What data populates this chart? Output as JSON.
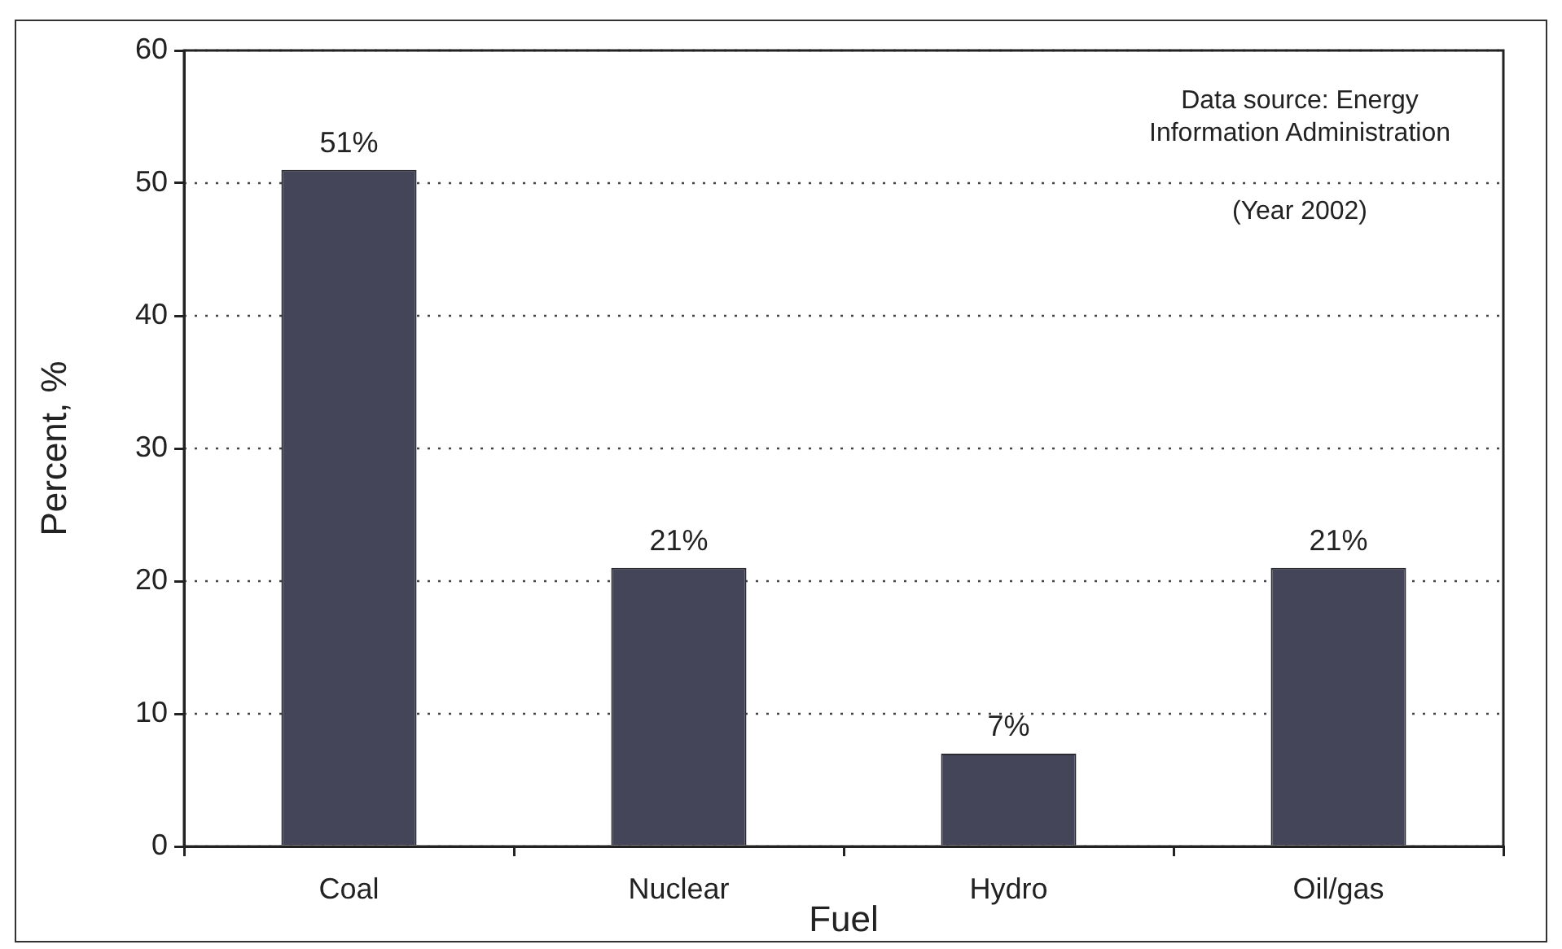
{
  "chart_data": {
    "type": "bar",
    "xlabel": "Fuel",
    "ylabel": "Percent, %",
    "categories": [
      "Coal",
      "Nuclear",
      "Hydro",
      "Oil/gas"
    ],
    "values": [
      51,
      21,
      7,
      21
    ],
    "value_labels": [
      "51%",
      "21%",
      "7%",
      "21%"
    ],
    "color": "#45455a",
    "ylim": [
      0,
      60
    ],
    "yticks": [
      0,
      10,
      20,
      30,
      40,
      50,
      60
    ],
    "grid": "y",
    "annotations": [
      "Data source: Energy Information Administration",
      "(Year 2002)"
    ]
  }
}
